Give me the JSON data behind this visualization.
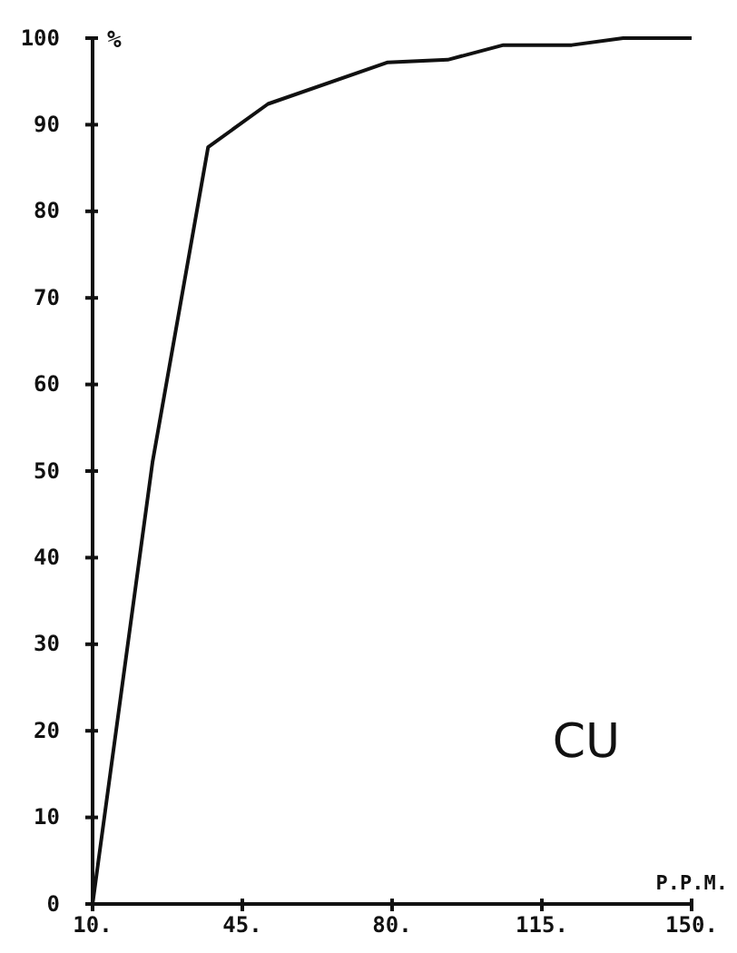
{
  "chart_data": {
    "type": "line",
    "ylabel": "%",
    "xlabel": "P.P.M.",
    "annotations": [
      "CU"
    ],
    "x": [
      10,
      24,
      37,
      51,
      79,
      93,
      106,
      122,
      134,
      150
    ],
    "series": [
      {
        "color": "#111111",
        "values": [
          0,
          51,
          87.4,
          92.4,
          97.2,
          97.5,
          99.2,
          99.2,
          100,
          100
        ]
      }
    ],
    "xlim": [
      10,
      150
    ],
    "xticks": [
      {
        "value": 10,
        "label": "10."
      },
      {
        "value": 45,
        "label": "45."
      },
      {
        "value": 80,
        "label": "80."
      },
      {
        "value": 115,
        "label": "115."
      },
      {
        "value": 150,
        "label": "150."
      }
    ],
    "ylim": [
      0,
      100
    ],
    "yticks": [
      0,
      10,
      20,
      30,
      40,
      50,
      60,
      70,
      80,
      90,
      100
    ],
    "marker": "none",
    "line_style": "solid"
  }
}
